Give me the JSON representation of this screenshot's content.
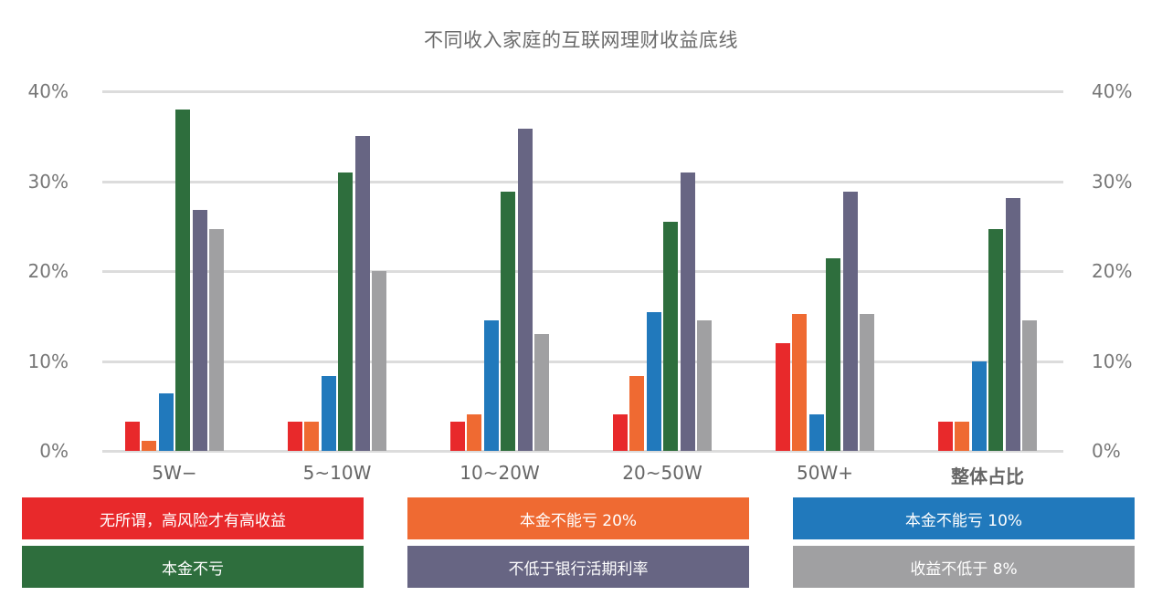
{
  "chart_data": {
    "type": "bar",
    "title": "不同收入家庭的互联网理财收益底线",
    "xlabel": "",
    "ylabel": "",
    "ylim": [
      0,
      40
    ],
    "yticks": [
      "0%",
      "10%",
      "20%",
      "30%",
      "40%"
    ],
    "y_axis_left": true,
    "y_axis_right": true,
    "grid": true,
    "legend_position": "bottom",
    "categories": [
      "5W−",
      "5~10W",
      "10~20W",
      "20~50W",
      "50W+",
      "整体占比"
    ],
    "series": [
      {
        "name": "无所谓，高风险才有高收益",
        "color": "#e8292b",
        "values": [
          3.2,
          3.2,
          3.2,
          4.1,
          12.0,
          3.2
        ]
      },
      {
        "name": "本金不能亏 20%",
        "color": "#ef6a32",
        "values": [
          1.1,
          3.2,
          4.1,
          8.3,
          15.2,
          3.2
        ]
      },
      {
        "name": "本金不能亏 10%",
        "color": "#2179bc",
        "values": [
          6.4,
          8.3,
          14.5,
          15.4,
          4.1,
          10.0
        ]
      },
      {
        "name": "本金不亏",
        "color": "#2e6e3d",
        "values": [
          38.0,
          31.0,
          28.8,
          25.5,
          21.4,
          24.7
        ]
      },
      {
        "name": "不低于银行活期利率",
        "color": "#676583",
        "values": [
          26.8,
          35.0,
          35.8,
          31.0,
          28.8,
          28.1
        ]
      },
      {
        "name": "收益不低于 8%",
        "color": "#a0a0a2",
        "values": [
          24.7,
          20.0,
          13.0,
          14.5,
          15.2,
          14.5
        ]
      }
    ]
  }
}
